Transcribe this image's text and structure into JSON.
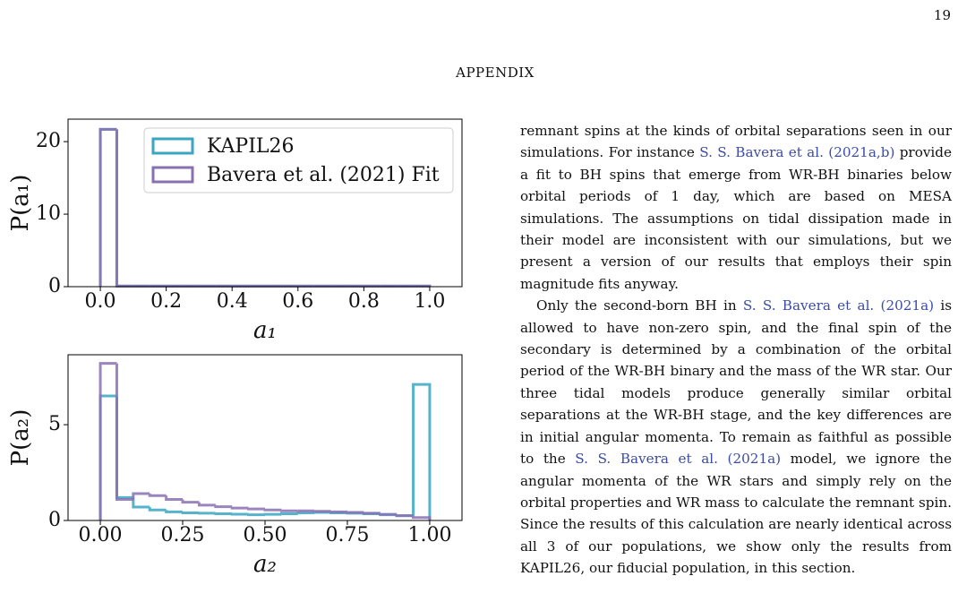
{
  "page_number": "19",
  "header": "APPENDIX",
  "chart_data": [
    {
      "type": "histogram",
      "xlabel": "a₁",
      "ylabel": "P(a₁)",
      "bins": [
        0,
        0.05,
        0.1,
        0.15,
        0.2,
        0.25,
        0.3,
        0.35,
        0.4,
        0.45,
        0.5,
        0.55,
        0.6,
        0.65,
        0.7,
        0.75,
        0.8,
        0.85,
        0.9,
        0.95,
        1.0
      ],
      "series": [
        {
          "name": "KAPIL26",
          "color": "#3aa6c2",
          "values": [
            21.7,
            0.1,
            0.1,
            0.1,
            0.1,
            0.1,
            0.1,
            0.1,
            0.1,
            0.1,
            0.1,
            0.1,
            0.1,
            0.1,
            0.1,
            0.1,
            0.1,
            0.1,
            0.1,
            0.1
          ]
        },
        {
          "name": "Bavera et al. (2021) Fit",
          "color": "#8a70b3",
          "values": [
            21.7,
            0.08,
            0.08,
            0.08,
            0.08,
            0.08,
            0.08,
            0.08,
            0.08,
            0.08,
            0.08,
            0.08,
            0.08,
            0.08,
            0.08,
            0.08,
            0.08,
            0.08,
            0.08,
            0.08
          ]
        }
      ],
      "xlim": [
        -0.098,
        1.098
      ],
      "ylim": [
        0,
        23.1
      ],
      "xticks": [
        {
          "value": 0,
          "label": "0.0"
        },
        0.2,
        0.4,
        0.6,
        0.8,
        {
          "value": 1,
          "label": "1.0"
        }
      ],
      "yticks": [
        0,
        10,
        20
      ],
      "legend": "upper right"
    },
    {
      "type": "histogram",
      "xlabel": "a₂",
      "ylabel": "P(a₂)",
      "bins": [
        0,
        0.05,
        0.1,
        0.15,
        0.2,
        0.25,
        0.3,
        0.35,
        0.4,
        0.45,
        0.5,
        0.55,
        0.6,
        0.65,
        0.7,
        0.75,
        0.8,
        0.85,
        0.9,
        0.95,
        1.0
      ],
      "series": [
        {
          "color": "#3aa6c2",
          "values": [
            6.5,
            1.2,
            0.7,
            0.55,
            0.45,
            0.4,
            0.38,
            0.35,
            0.33,
            0.3,
            0.32,
            0.35,
            0.4,
            0.42,
            0.4,
            0.38,
            0.35,
            0.3,
            0.25,
            7.1
          ]
        },
        {
          "color": "#8a70b3",
          "values": [
            8.2,
            1.1,
            1.4,
            1.3,
            1.1,
            0.95,
            0.8,
            0.72,
            0.65,
            0.6,
            0.55,
            0.5,
            0.5,
            0.48,
            0.45,
            0.42,
            0.38,
            0.32,
            0.25,
            0.15
          ]
        }
      ],
      "xlim": [
        -0.098,
        1.098
      ],
      "ylim": [
        0,
        8.65
      ],
      "xticks": [
        {
          "value": 0,
          "label": "0.00"
        },
        {
          "value": 0.25,
          "label": "0.25"
        },
        {
          "value": 0.5,
          "label": "0.50"
        },
        {
          "value": 0.75,
          "label": "0.75"
        },
        {
          "value": 1,
          "label": "1.00"
        }
      ],
      "yticks": [
        0,
        5
      ]
    }
  ],
  "paragraphs": [
    [
      {
        "text": "remnant spins at the kinds of orbital separations seen in our simulations. For instance ",
        "cite": false
      },
      {
        "text": "S. S. Bavera et al.",
        "cite": true
      },
      {
        "text": " ",
        "cite": false
      },
      {
        "text": "(2021a,b)",
        "cite": true
      },
      {
        "text": " provide a fit to BH spins that emerge from WR-BH binaries below orbital periods of 1 day, which are based on MESA simulations. The assumptions on tidal dissipation made in their model are inconsistent with our simulations, but we present a version of our results that employs their spin magnitude fits anyway.",
        "cite": false
      }
    ],
    [
      {
        "text": "Only the second-born BH in ",
        "cite": false
      },
      {
        "text": "S. S. Bavera et al. (2021a)",
        "cite": true
      },
      {
        "text": " is allowed to have non-zero spin, and the final spin of the secondary is determined by a combination of the orbital period of the WR-BH binary and the mass of the WR star. Our three tidal models produce generally similar orbital separations at the WR-BH stage, and the key differences are in initial angular momenta. To remain as faithful as possible to the ",
        "cite": false
      },
      {
        "text": "S. S. Bavera et al. (2021a)",
        "cite": true
      },
      {
        "text": " model, we ignore the angular momenta of the WR stars and simply rely on the orbital properties and WR mass to calculate the remnant spin. Since the results of this calculation are nearly identical across all 3 of our populations, we show only the results from KAPIL26, our fiducial population, in this section.",
        "cite": false
      }
    ]
  ]
}
